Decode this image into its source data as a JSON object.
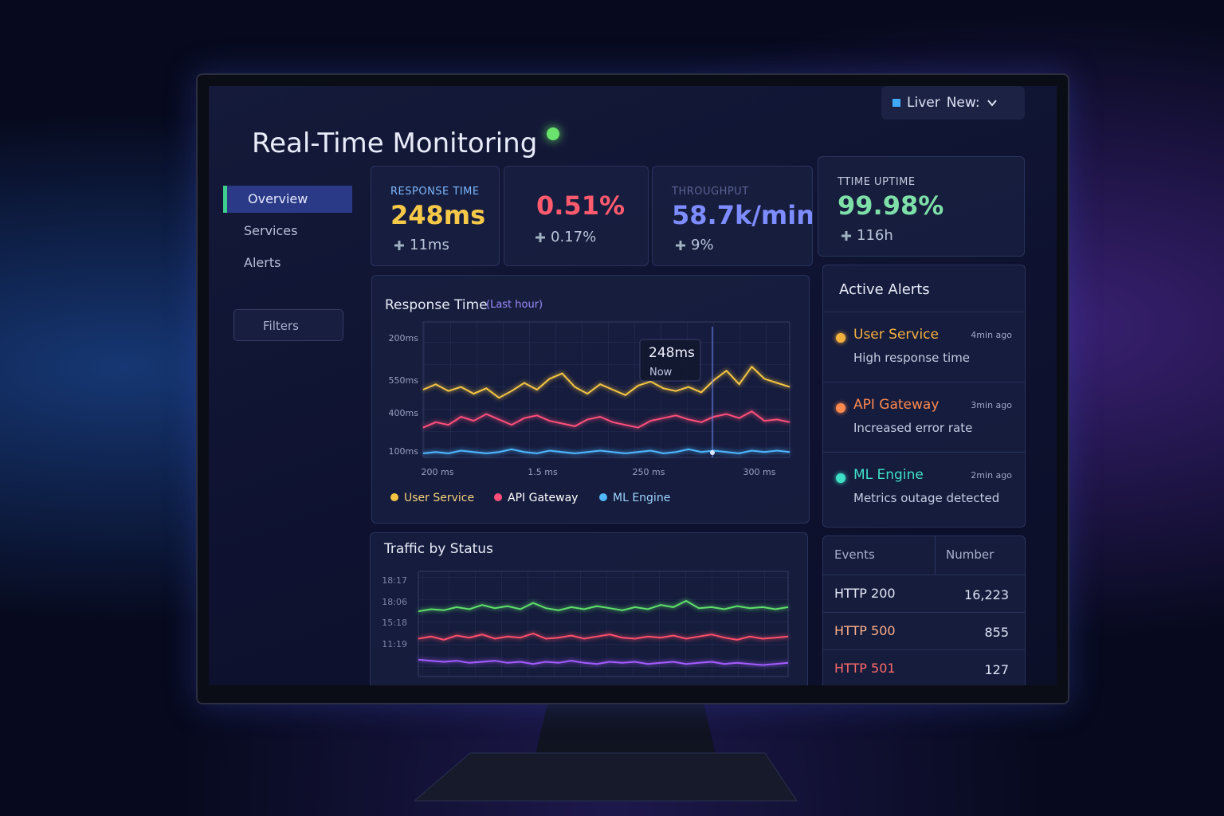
{
  "header": {
    "title": "Real-Time Monitoring",
    "toggle": {
      "label": "Liver",
      "value": "New:"
    }
  },
  "nav": {
    "items": [
      "Overview",
      "Services",
      "Alerts"
    ],
    "filters": "Filters"
  },
  "kpis": [
    {
      "label": "RESPONSE TIME",
      "value": "248ms",
      "delta": "11ms",
      "color": "#f7c948"
    },
    {
      "value": "0.51%",
      "delta": "0.17%",
      "color": "#ff5a6e"
    },
    {
      "label": "THROUGHPUT",
      "value": "58.7k/min",
      "delta": "9%",
      "color": "#7d8cff"
    },
    {
      "label": "TTIME UPTIME",
      "value": "99.98%",
      "delta": "116h",
      "color": "#7ee0a8"
    }
  ],
  "chart_data": [
    {
      "type": "line",
      "title": "Response Time",
      "subtitle": "(Last hour)",
      "y_axis_labels": [
        "200ms",
        "550ms",
        "400ms",
        "100ms"
      ],
      "x_axis_labels": [
        "200 ms",
        "1.5 ms",
        "250 ms",
        "300 ms"
      ],
      "ylim": [
        0,
        100
      ],
      "annotation": {
        "value": "248ms",
        "label": "Now"
      },
      "series": [
        {
          "name": "User Service",
          "color": "#f5c542",
          "values": [
            50,
            54,
            49,
            52,
            47,
            51,
            44,
            49,
            55,
            50,
            58,
            62,
            52,
            47,
            54,
            50,
            46,
            53,
            56,
            51,
            49,
            52,
            48,
            57,
            64,
            54,
            67,
            58,
            55,
            52
          ]
        },
        {
          "name": "API Gateway",
          "color": "#ff4f7a",
          "values": [
            22,
            26,
            24,
            30,
            27,
            32,
            28,
            24,
            29,
            31,
            27,
            25,
            23,
            28,
            30,
            26,
            24,
            22,
            27,
            29,
            31,
            28,
            26,
            30,
            32,
            29,
            34,
            27,
            28,
            26
          ]
        },
        {
          "name": "ML Engine",
          "color": "#4fb8ff",
          "values": [
            3,
            4,
            3,
            5,
            4,
            3,
            4,
            6,
            4,
            3,
            5,
            4,
            3,
            4,
            5,
            4,
            3,
            4,
            5,
            3,
            4,
            6,
            4,
            5,
            4,
            3,
            5,
            4,
            5,
            4
          ]
        }
      ]
    },
    {
      "type": "line",
      "title": "Traffic by Status",
      "y_axis_labels": [
        "18:17",
        "18:06",
        "15:18",
        "11:19"
      ],
      "ylim": [
        0,
        100
      ],
      "series": [
        {
          "color": "#5ee06a",
          "values": [
            62,
            64,
            63,
            66,
            64,
            68,
            65,
            67,
            64,
            70,
            65,
            63,
            66,
            64,
            67,
            65,
            63,
            66,
            64,
            68,
            66,
            72,
            65,
            66,
            64,
            67,
            65,
            66,
            64,
            66
          ]
        },
        {
          "color": "#ff4f6a",
          "values": [
            36,
            38,
            35,
            39,
            37,
            40,
            36,
            38,
            37,
            41,
            36,
            37,
            39,
            36,
            38,
            40,
            37,
            36,
            38,
            37,
            39,
            36,
            38,
            40,
            37,
            35,
            38,
            36,
            37,
            38
          ]
        },
        {
          "color": "#a45cff",
          "values": [
            16,
            15,
            14,
            15,
            13,
            14,
            15,
            13,
            14,
            12,
            14,
            13,
            15,
            13,
            12,
            14,
            13,
            14,
            12,
            13,
            14,
            12,
            13,
            14,
            12,
            13,
            12,
            11,
            12,
            13
          ]
        }
      ]
    }
  ],
  "alerts": {
    "title": "Active Alerts",
    "items": [
      {
        "name": "User Service",
        "message": "High response time",
        "time": "4min ago",
        "color": "#f5b13d"
      },
      {
        "name": "API Gateway",
        "message": "Increased error rate",
        "time": "3min ago",
        "color": "#ff8a4f"
      },
      {
        "name": "ML Engine",
        "message": "Metrics outage detected",
        "time": "2min ago",
        "color": "#3fe0c8"
      }
    ]
  },
  "table": {
    "headers": [
      "Events",
      "Number"
    ],
    "rows": [
      [
        "HTTP 200",
        "16,223"
      ],
      [
        "HTTP 500",
        "855"
      ],
      [
        "HTTP 501",
        "127"
      ]
    ]
  }
}
